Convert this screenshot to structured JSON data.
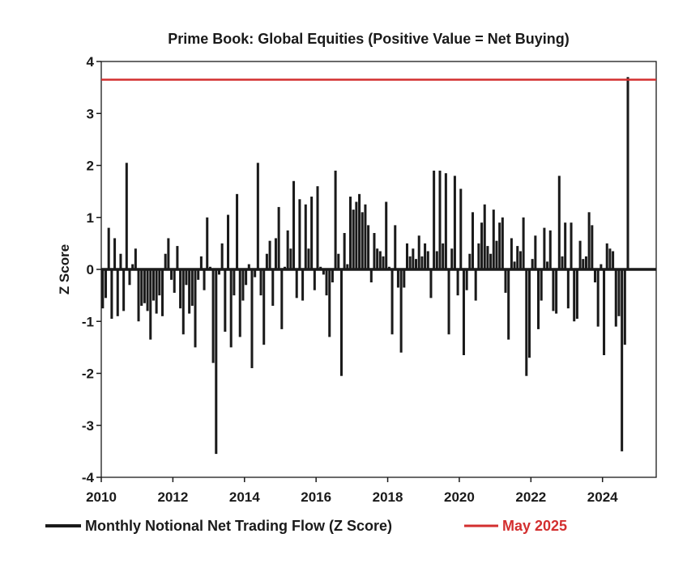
{
  "chart_data": {
    "type": "bar",
    "title": "Prime Book: Global Equities (Positive Value = Net Buying)",
    "ylabel": "Z Score",
    "xlabel": "",
    "ylim": [
      -4,
      4
    ],
    "yticks": [
      "4",
      "3",
      "2",
      "1",
      "0",
      "-1",
      "-2",
      "-3",
      "-4"
    ],
    "xlim": [
      2010.0,
      2025.5
    ],
    "xticks": [
      "2010",
      "2012",
      "2014",
      "2016",
      "2018",
      "2020",
      "2022",
      "2024"
    ],
    "grid": false,
    "legend_position": "bottom",
    "series": [
      {
        "name": "Monthly Notional Net Trading Flow (Z Score)",
        "color": "#1a1a1a",
        "start": "2010-01",
        "frequency": "monthly",
        "values": [
          -0.75,
          -0.55,
          0.8,
          -0.95,
          0.6,
          -0.9,
          0.3,
          -0.8,
          2.05,
          -0.3,
          0.1,
          0.4,
          -1.0,
          -0.7,
          -0.65,
          -0.8,
          -1.35,
          -0.6,
          -0.85,
          -0.5,
          -0.9,
          0.3,
          0.6,
          -0.2,
          -0.45,
          0.45,
          -0.75,
          -1.25,
          -0.3,
          -0.85,
          -0.7,
          -1.5,
          -0.2,
          0.25,
          -0.4,
          1.0,
          0.05,
          -1.8,
          -3.55,
          -0.1,
          0.5,
          -1.2,
          1.05,
          -1.5,
          -0.5,
          1.45,
          -1.3,
          -0.6,
          -0.3,
          0.1,
          -1.9,
          -0.15,
          2.05,
          -0.5,
          -1.45,
          0.3,
          0.55,
          -0.7,
          0.6,
          1.2,
          -1.15,
          0.05,
          0.75,
          0.4,
          1.7,
          -0.55,
          1.35,
          -0.6,
          1.25,
          0.4,
          1.4,
          -0.4,
          1.6,
          0.05,
          -0.1,
          -0.5,
          -1.3,
          -0.25,
          1.9,
          0.3,
          -2.05,
          0.7,
          0.1,
          1.4,
          1.15,
          1.3,
          1.45,
          1.1,
          1.25,
          0.85,
          -0.25,
          0.7,
          0.4,
          0.35,
          0.25,
          1.3,
          0.05,
          -1.25,
          0.85,
          -0.35,
          -1.6,
          -0.35,
          0.5,
          0.25,
          0.4,
          0.2,
          0.65,
          0.25,
          0.5,
          0.35,
          -0.55,
          1.9,
          0.35,
          1.9,
          0.5,
          1.85,
          -1.25,
          0.4,
          1.8,
          -0.5,
          1.55,
          -1.65,
          -0.4,
          0.3,
          1.1,
          -0.6,
          0.5,
          0.9,
          1.25,
          0.45,
          0.3,
          1.15,
          0.55,
          0.9,
          1.0,
          -0.45,
          -1.35,
          0.6,
          0.15,
          0.45,
          0.35,
          1.0,
          -2.05,
          -1.7,
          0.2,
          0.65,
          -1.15,
          -0.6,
          0.8,
          0.15,
          0.75,
          -0.8,
          -0.85,
          1.8,
          0.25,
          0.9,
          -0.75,
          0.9,
          -1.0,
          -0.95,
          0.55,
          0.2,
          0.25,
          1.1,
          0.85,
          -0.25,
          -1.1,
          0.1,
          -1.65,
          0.5,
          0.4,
          0.35,
          -1.1,
          -0.9,
          -3.5,
          -1.45,
          3.7
        ]
      },
      {
        "name": "May 2025",
        "color": "#d32f2f",
        "type": "hline",
        "value": 3.65
      }
    ]
  }
}
